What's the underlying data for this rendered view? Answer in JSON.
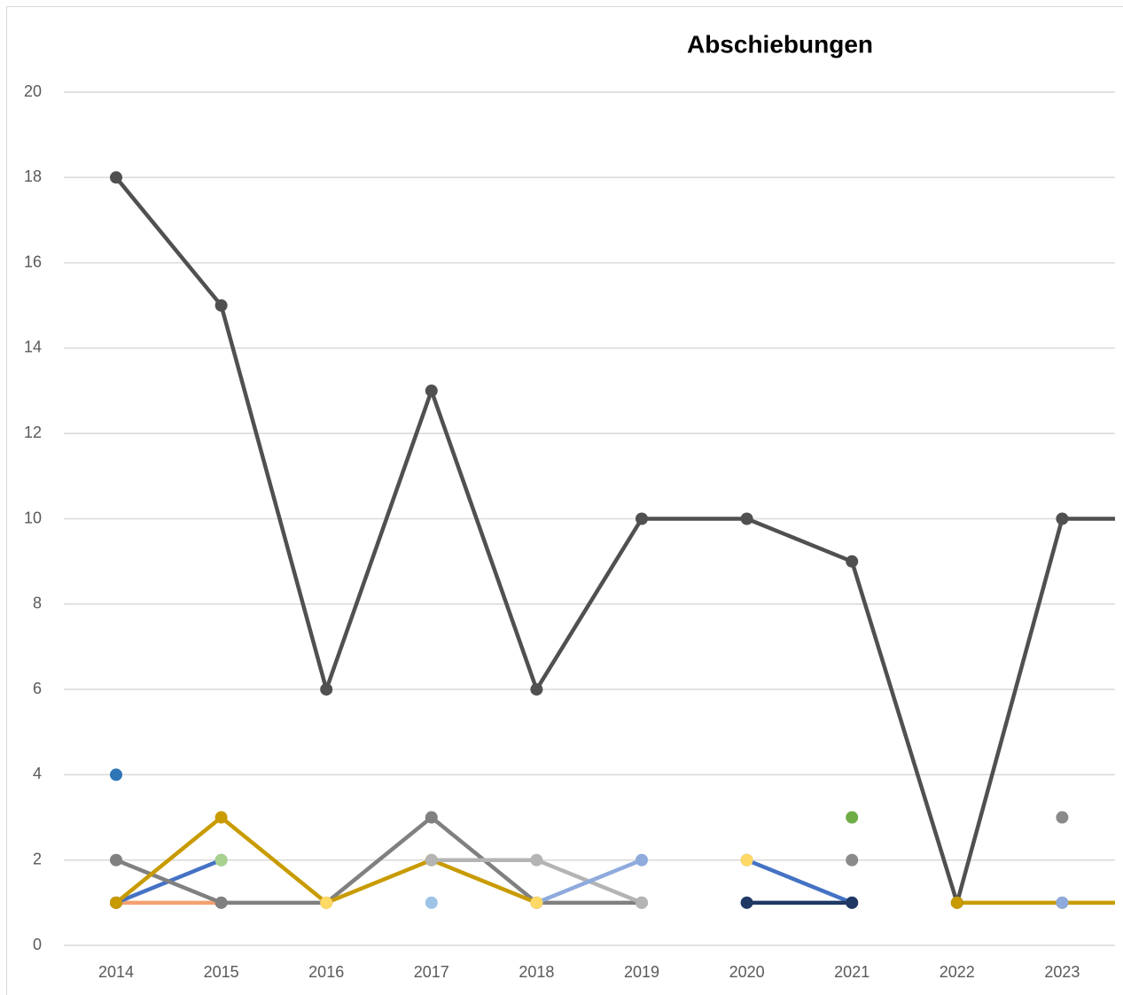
{
  "chart_data": {
    "type": "line",
    "title": "Abschiebungen",
    "categories": [
      "2014",
      "2015",
      "2016",
      "2017",
      "2018",
      "2019",
      "2020",
      "2021",
      "2022",
      "2023",
      null
    ],
    "ylim": [
      0,
      20
    ],
    "yticks": [
      0,
      2,
      4,
      6,
      8,
      10,
      12,
      14,
      16,
      18,
      20
    ],
    "grid": true,
    "series": [
      {
        "color": "#505050",
        "values": [
          18,
          15,
          6,
          13,
          6,
          10,
          10,
          9,
          1,
          10,
          10
        ]
      },
      {
        "color": "#2e75b6",
        "values": [
          4,
          null,
          null,
          null,
          null,
          null,
          null,
          null,
          null,
          null,
          null
        ]
      },
      {
        "color": "#f4a070",
        "values": [
          1,
          1,
          null,
          null,
          null,
          null,
          null,
          null,
          null,
          null,
          null
        ]
      },
      {
        "color": "#4472c4",
        "values": [
          1,
          2,
          null,
          null,
          null,
          null,
          2,
          1,
          null,
          null,
          null
        ]
      },
      {
        "color": "#a9d18e",
        "values": [
          null,
          2,
          null,
          null,
          null,
          null,
          null,
          null,
          null,
          null,
          null
        ]
      },
      {
        "color": "#808080",
        "values": [
          2,
          1,
          1,
          3,
          1,
          1,
          null,
          null,
          null,
          null,
          null
        ]
      },
      {
        "color": "#843c0c",
        "values": [
          1,
          null,
          null,
          null,
          null,
          null,
          null,
          null,
          null,
          null,
          null
        ]
      },
      {
        "color": "#c89b00",
        "values": [
          1,
          3,
          1,
          2,
          1,
          null,
          null,
          null,
          1,
          1,
          1
        ]
      },
      {
        "color": "#b4b4b4",
        "values": [
          null,
          null,
          null,
          2,
          2,
          1,
          null,
          null,
          null,
          null,
          null
        ]
      },
      {
        "color": "#9dc3e6",
        "values": [
          null,
          null,
          null,
          1,
          null,
          null,
          null,
          null,
          null,
          null,
          null
        ]
      },
      {
        "color": "#8faadc",
        "values": [
          null,
          null,
          null,
          null,
          1,
          2,
          null,
          null,
          null,
          1,
          null
        ]
      },
      {
        "color": "#ffd966",
        "values": [
          null,
          null,
          1,
          null,
          1,
          null,
          2,
          null,
          null,
          null,
          null
        ]
      },
      {
        "color": "#1f3864",
        "values": [
          null,
          null,
          null,
          null,
          null,
          null,
          1,
          1,
          null,
          null,
          null
        ]
      },
      {
        "color": "#70ad47",
        "values": [
          null,
          null,
          null,
          null,
          null,
          null,
          null,
          3,
          null,
          null,
          null
        ]
      },
      {
        "color": "#8a8a8a",
        "values": [
          null,
          null,
          null,
          null,
          null,
          null,
          null,
          2,
          null,
          3,
          null
        ]
      }
    ]
  }
}
